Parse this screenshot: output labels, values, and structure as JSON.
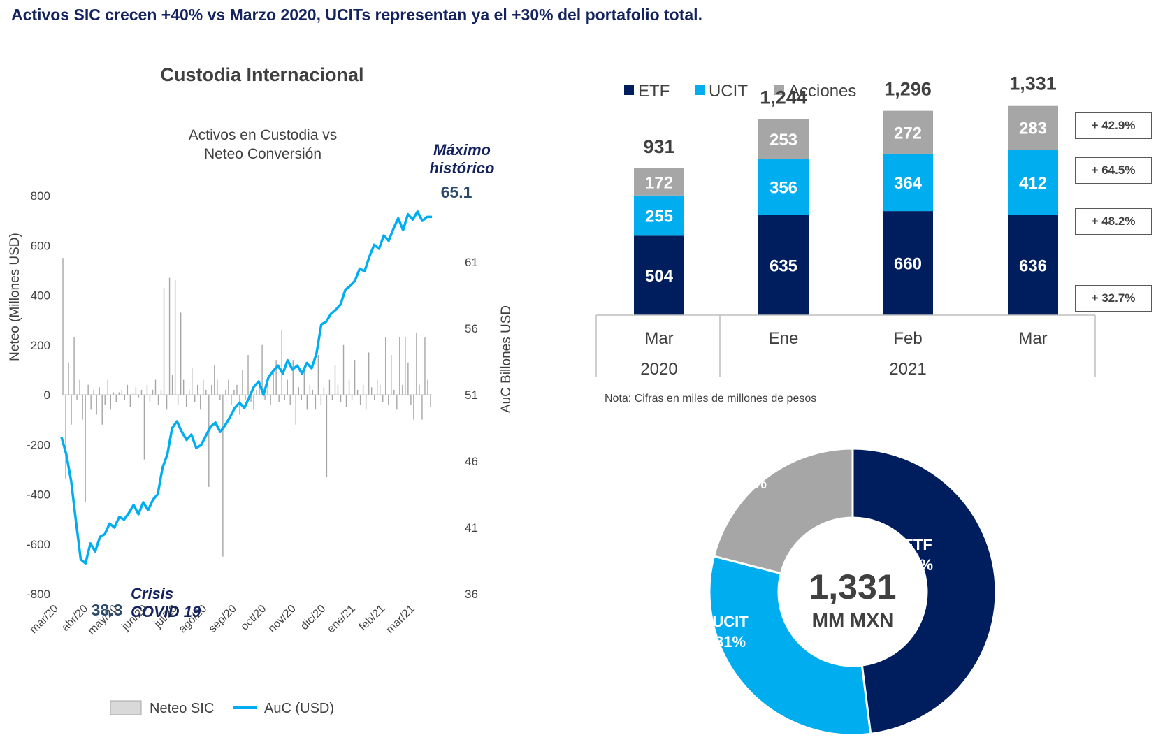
{
  "headline": "Activos SIC crecen +40% vs Marzo 2020, UCITs representan ya el +30% del portafolio total.",
  "left_panel": {
    "title": "Custodia Internacional",
    "annotations": {
      "max_label_line1": "Máximo",
      "max_label_line2": "histórico",
      "max_value": "65.1",
      "min_value": "38.3",
      "crisis_line1": "Crisis",
      "crisis_line2": "COVID 19"
    }
  },
  "right_panel": {
    "note": "Nota: Cifras en miles de millones de pesos",
    "growth_boxes": [
      "+ 42.9%",
      "+ 64.5%",
      "+ 48.2%",
      "+ 32.7%"
    ],
    "donut_center_value": "1,331",
    "donut_center_unit": "MM MXN"
  },
  "colors": {
    "etf": "#001e5e",
    "ucit": "#00aeef",
    "acciones": "#a6a6a6",
    "neteo": "#a6a6a6",
    "auc": "#00aeef",
    "headline": "#14235e"
  },
  "chart_data": [
    {
      "type": "line",
      "title": "Activos en Custodia vs Neteo Conversión",
      "title_lines": [
        "Activos en Custodia vs",
        "Neteo Conversión"
      ],
      "xlabel": "",
      "ylabel": "Neteo (Millones USD)",
      "y2label": "AuC Billones USD",
      "ylim": [
        -800,
        800
      ],
      "y2lim": [
        36,
        66
      ],
      "yticks": [
        "800",
        "600",
        "400",
        "200",
        "0",
        "-200",
        "-400",
        "-600",
        "-800"
      ],
      "y2ticks": [
        "61",
        "56",
        "51",
        "46",
        "41",
        "36"
      ],
      "x_tick_labels": [
        "mar/20",
        "abr/20",
        "may/20",
        "jun/20",
        "jul/20",
        "ago/20",
        "sep/20",
        "oct/20",
        "nov/20",
        "dic/20",
        "ene/21",
        "feb/21",
        "mar/21"
      ],
      "legend_position": "bottom",
      "series": [
        {
          "name": "Neteo SIC",
          "type": "bar",
          "axis": "left",
          "values": [
            550,
            -340,
            130,
            -120,
            230,
            -20,
            60,
            -100,
            -430,
            40,
            -60,
            20,
            -80,
            30,
            -120,
            -40,
            60,
            -60,
            10,
            -30,
            10,
            20,
            -20,
            40,
            -50,
            5,
            30,
            -10,
            20,
            -260,
            40,
            -30,
            20,
            60,
            -40,
            20,
            430,
            -60,
            470,
            80,
            460,
            -40,
            330,
            60,
            -50,
            20,
            110,
            -30,
            40,
            -60,
            60,
            20,
            -370,
            40,
            120,
            60,
            -20,
            -650,
            20,
            60,
            -40,
            20,
            40,
            -80,
            100,
            -20,
            160,
            -30,
            -60,
            20,
            40,
            200,
            -20,
            60,
            -40,
            100,
            140,
            -30,
            260,
            -20,
            60,
            -40,
            140,
            -120,
            30,
            -20,
            100,
            -60,
            40,
            20,
            -60,
            160,
            -40,
            30,
            -330,
            60,
            -20,
            120,
            40,
            -30,
            200,
            -50,
            60,
            -20,
            140,
            20,
            -40,
            40,
            -60,
            170,
            30,
            -20,
            60,
            40,
            -30,
            230,
            -40,
            160,
            20,
            -60,
            230,
            40,
            230,
            130,
            -40,
            -100,
            250,
            40,
            -100,
            230,
            60,
            -50
          ]
        },
        {
          "name": "AuC (USD)",
          "type": "line",
          "axis": "right",
          "values": [
            47.8,
            46.5,
            44.5,
            41.5,
            38.6,
            38.3,
            39.8,
            39.2,
            40.3,
            40.5,
            41.3,
            41.0,
            41.8,
            41.6,
            42.1,
            42.7,
            42.0,
            42.9,
            42.3,
            43.1,
            43.5,
            45.5,
            46.5,
            48.5,
            49.0,
            48.2,
            47.6,
            48.0,
            47.0,
            47.2,
            47.9,
            48.6,
            48.9,
            48.2,
            48.7,
            49.3,
            50.0,
            50.4,
            50.0,
            50.8,
            51.6,
            52.0,
            51.0,
            52.3,
            52.8,
            53.2,
            52.6,
            53.6,
            52.9,
            53.2,
            52.6,
            53.4,
            53.0,
            54.1,
            56.3,
            56.5,
            57.1,
            57.4,
            57.8,
            58.9,
            59.2,
            59.6,
            60.5,
            60.3,
            61.4,
            62.3,
            62.0,
            63.0,
            62.6,
            63.5,
            64.3,
            63.4,
            64.6,
            64.2,
            64.8,
            64.1,
            64.4,
            64.4
          ]
        }
      ]
    },
    {
      "type": "bar",
      "stacked": true,
      "categories": [
        "Mar",
        "Ene",
        "Feb",
        "Mar"
      ],
      "category_groups": [
        {
          "label": "2020",
          "categories": [
            0
          ]
        },
        {
          "label": "2021",
          "categories": [
            1,
            2,
            3
          ]
        }
      ],
      "series": [
        {
          "name": "ETF",
          "values": [
            504,
            635,
            660,
            636
          ]
        },
        {
          "name": "UCIT",
          "values": [
            255,
            356,
            364,
            412
          ]
        },
        {
          "name": "Acciones",
          "values": [
            172,
            253,
            272,
            283
          ]
        }
      ],
      "totals": [
        "931",
        "1,244",
        "1,296",
        "1,331"
      ],
      "ylim": [
        0,
        1400
      ],
      "legend_position": "top"
    },
    {
      "type": "pie",
      "donut": true,
      "slices": [
        {
          "name": "ETF",
          "label": "ETF",
          "pct_label": "48%",
          "value": 48
        },
        {
          "name": "UCIT",
          "label": "UCIT",
          "pct_label": "31%",
          "value": 31
        },
        {
          "name": "Acciones",
          "label": "Acciones",
          "pct_label": "21%",
          "value": 21
        }
      ]
    }
  ]
}
